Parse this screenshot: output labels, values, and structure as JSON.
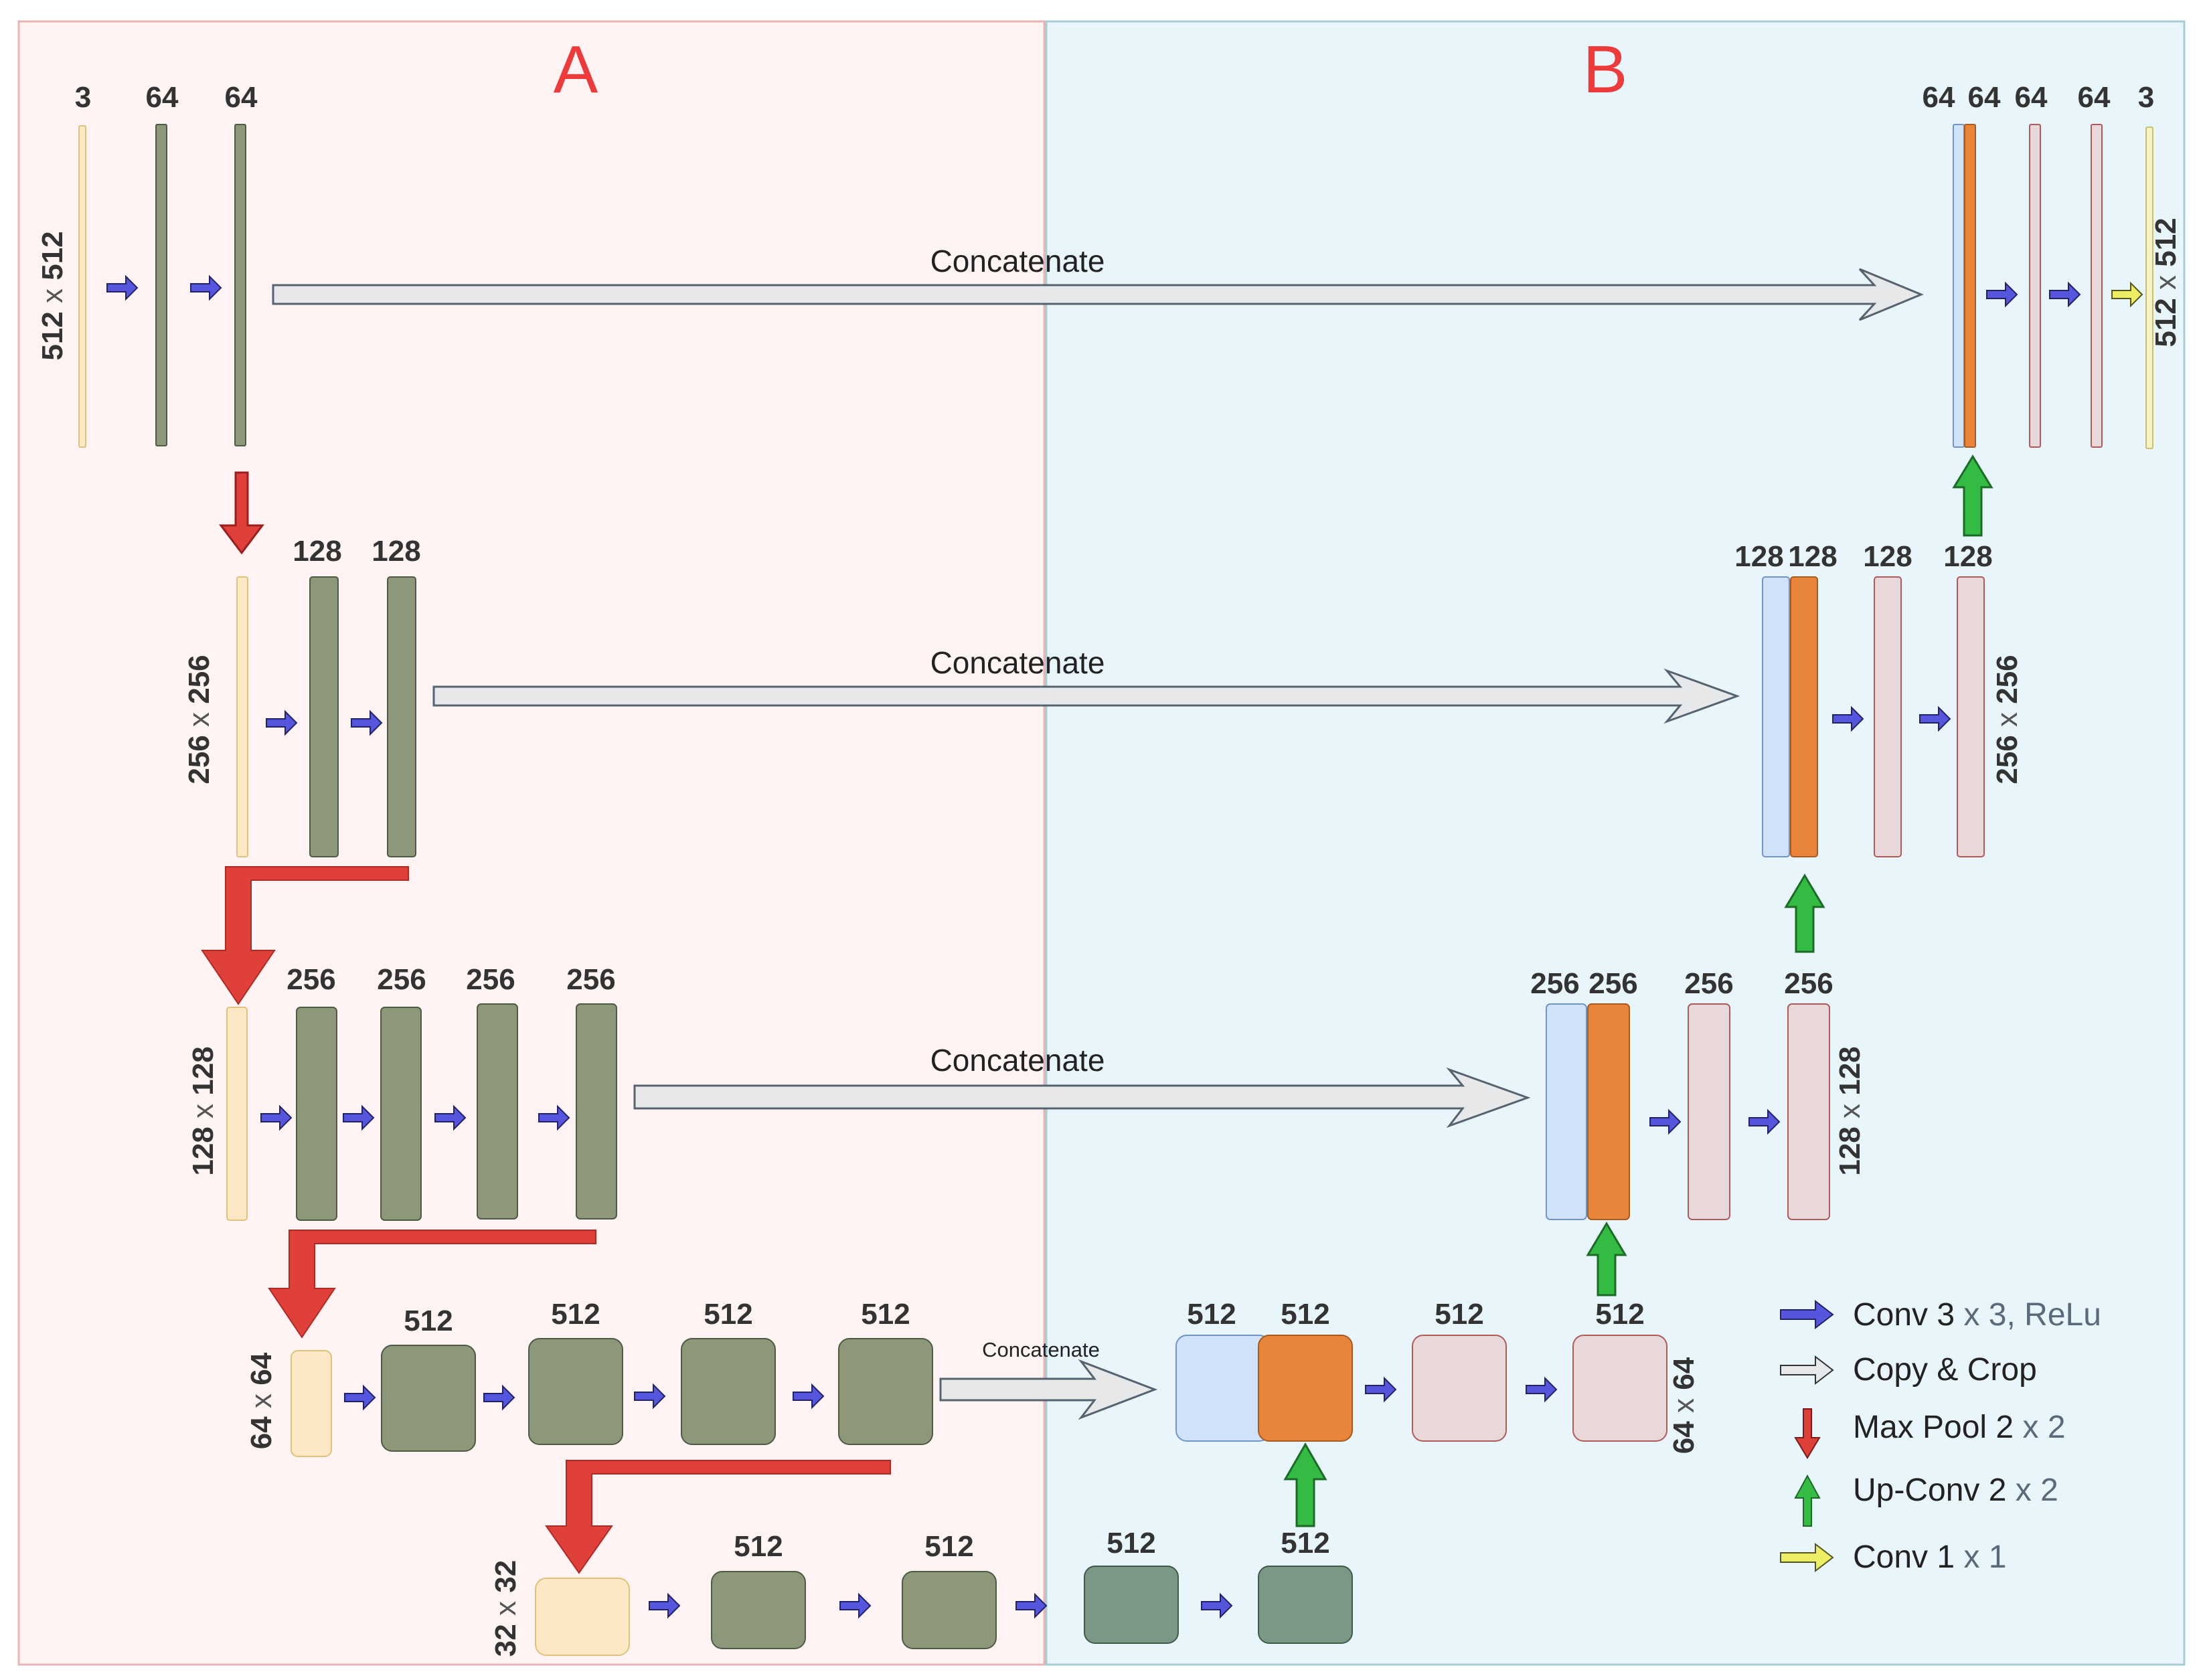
{
  "sections": {
    "a": "A",
    "b": "B"
  },
  "concat_label": "Concatenate",
  "channels": {
    "top_in": "3",
    "top_c1": "64",
    "top_c2": "64",
    "l2_c1": "128",
    "l2_c2": "128",
    "l3_c1": "256",
    "l3_c2": "256",
    "l3_c3": "256",
    "l3_c4": "256",
    "l4_c1": "512",
    "l4_c2": "512",
    "l4_c3": "512",
    "l4_c4": "512",
    "b_c1": "512",
    "b_c2": "512",
    "b_c3": "512",
    "b_c4": "512",
    "d4_skip": "512",
    "d4_up": "512",
    "d4_c1": "512",
    "d4_c2": "512",
    "d3_skip": "256",
    "d3_up": "256",
    "d3_c1": "256",
    "d3_c2": "256",
    "d2_skip": "128",
    "d2_up": "128",
    "d2_c1": "128",
    "d2_c2": "128",
    "d1_skip": "64",
    "d1_up": "64",
    "d1_c1": "64",
    "d1_c2": "64",
    "d1_out": "3"
  },
  "sizes": {
    "s512": {
      "a": "512",
      "x": "x",
      "b": "512"
    },
    "s256": {
      "a": "256",
      "x": "x",
      "b": "256"
    },
    "s128": {
      "a": "128",
      "x": "x",
      "b": "128"
    },
    "s64": {
      "a": "64",
      "x": "x",
      "b": "64"
    },
    "s32": {
      "a": "32",
      "x": "x",
      "b": "32"
    }
  },
  "legend": {
    "conv": {
      "name": "Conv  3",
      "x": "x",
      "n": "3,",
      "act": "ReLu"
    },
    "copy": {
      "text": "Copy & Crop"
    },
    "pool": {
      "name": "Max Pool 2",
      "x": "x",
      "n": "2"
    },
    "upconv": {
      "name": "Up-Conv 2",
      "x": "x",
      "n": "2"
    },
    "conv1": {
      "name": "Conv 1",
      "x": "x",
      "n": "1"
    }
  },
  "colors": {
    "region_a": "#fff3f3",
    "region_a_border": "#e8b4b4",
    "region_b": "#e8f5fb",
    "region_b_border": "#a9cbd8",
    "encoder": "#8d987b",
    "bottleneck": "#7b9886",
    "input": "#fde8c6",
    "skip": "#cfe2f7",
    "upconv": "#e8853a",
    "decoder": "#e8d8da",
    "conv_arrow": "#5555dd",
    "pool_arrow": "#e0403a",
    "up_arrow": "#33bb44",
    "conv1_arrow": "#eeee66",
    "copy_arrow": "#e6e8ea"
  }
}
